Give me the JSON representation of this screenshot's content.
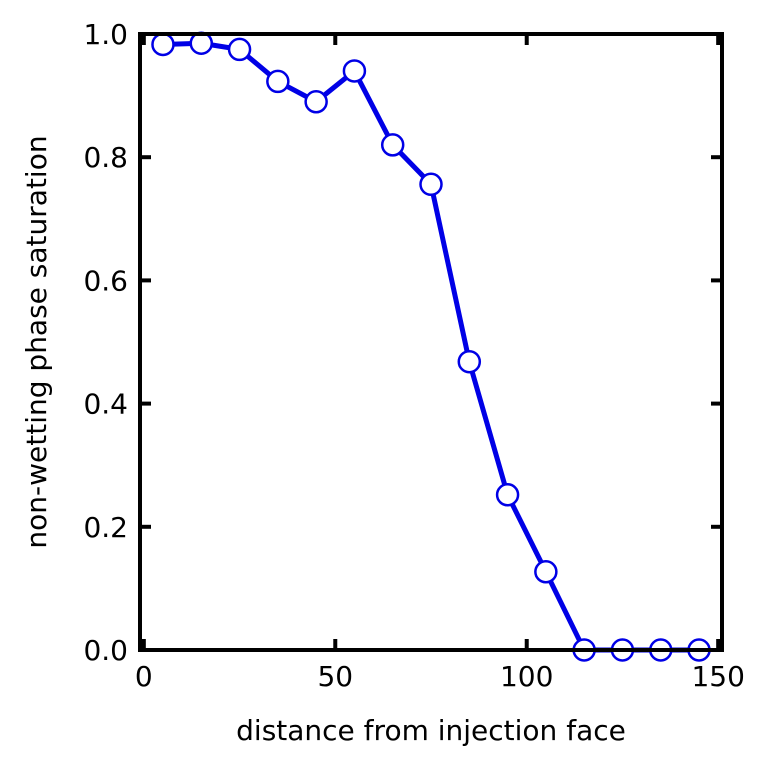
{
  "chart_data": {
    "type": "line",
    "title": "",
    "xlabel": "distance from injection face",
    "ylabel": "non-wetting phase saturation",
    "xlim": [
      -1,
      151
    ],
    "ylim": [
      0,
      1
    ],
    "x_ticks": [
      0,
      50,
      100,
      150
    ],
    "x_tick_labels": [
      "0",
      "50",
      "100",
      "150"
    ],
    "y_ticks": [
      0,
      0.2,
      0.4,
      0.6,
      0.8,
      1.0
    ],
    "y_tick_labels": [
      "0.0",
      "0.2",
      "0.4",
      "0.6",
      "0.8",
      "1.0"
    ],
    "grid": false,
    "legend": "none",
    "series": [
      {
        "color": "#0000e6",
        "marker": "open-circle",
        "x": [
          5,
          15,
          25,
          35,
          45,
          55,
          65,
          75,
          85,
          95,
          105,
          115,
          125,
          135,
          145
        ],
        "y": [
          0.983,
          0.985,
          0.975,
          0.923,
          0.89,
          0.94,
          0.82,
          0.756,
          0.468,
          0.252,
          0.127,
          0.0,
          0.0,
          0.0,
          0.0
        ]
      }
    ]
  }
}
